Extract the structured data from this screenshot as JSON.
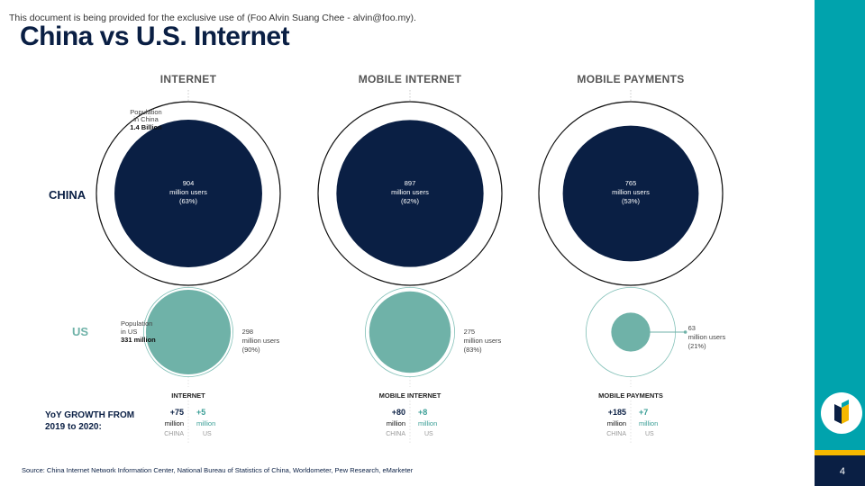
{
  "notice": "This document is being provided for the exclusive use of (Foo Alvin Suang Chee - alvin@foo.my).",
  "title": "China vs U.S. Internet",
  "source": "Source: China Internet Network Information Center, National Bureau of Statistics of China, Worldometer, Pew Research, eMarketer",
  "page_number": "4",
  "colors": {
    "china": "#0a1f44",
    "us": "#6fb2a8",
    "accent": "#00a3ad",
    "stripe": "#f5b800"
  },
  "chart_data": {
    "type": "bubble",
    "columns": [
      "INTERNET",
      "MOBILE INTERNET",
      "MOBILE PAYMENTS"
    ],
    "rows": [
      "CHINA",
      "US"
    ],
    "population_labels": {
      "china": [
        "Population",
        "in China",
        "1.4 Billion"
      ],
      "us": [
        "Population",
        "in US",
        "331 million"
      ]
    },
    "population": {
      "china_millions": 1400,
      "us_millions": 331
    },
    "china": [
      {
        "value": 904,
        "unit": "million users",
        "pct": "(63%)"
      },
      {
        "value": 897,
        "unit": "million users",
        "pct": "(62%)"
      },
      {
        "value": 765,
        "unit": "million users",
        "pct": "(53%)"
      }
    ],
    "us": [
      {
        "value": 298,
        "unit": "million users",
        "pct": "(90%)"
      },
      {
        "value": 275,
        "unit": "million users",
        "pct": "(83%)"
      },
      {
        "value": 63,
        "unit": "million users",
        "pct": "(21%)"
      }
    ],
    "growth_title": [
      "YoY GROWTH FROM",
      "2019 to 2020:"
    ],
    "growth": [
      {
        "label": "INTERNET",
        "china": "+75",
        "us": "+5"
      },
      {
        "label": "MOBILE INTERNET",
        "china": "+80",
        "us": "+8"
      },
      {
        "label": "MOBILE PAYMENTS",
        "china": "+185",
        "us": "+7"
      }
    ],
    "growth_unit": "million",
    "growth_captions": {
      "china": "CHINA",
      "us": "US"
    }
  }
}
